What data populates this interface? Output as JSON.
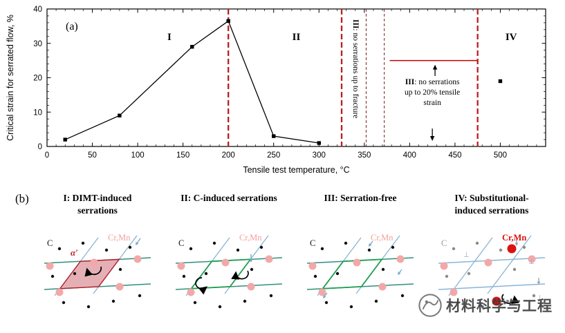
{
  "figure": {
    "panel_a_label": "(a)",
    "panel_b_label": "(b)"
  },
  "chart_data": {
    "type": "line",
    "xlabel": "Tensile test temperature, °C",
    "ylabel": "Critical strain for serrated flow, %",
    "xlim": [
      0,
      550
    ],
    "ylim": [
      0,
      40
    ],
    "xticks": [
      0,
      50,
      100,
      150,
      200,
      250,
      300,
      350,
      400,
      450,
      500
    ],
    "yticks": [
      0,
      10,
      20,
      30,
      40
    ],
    "series": [
      {
        "name": "Critical strain for serrated flow",
        "marker": "square",
        "color": "#000000",
        "points": [
          [
            20,
            2
          ],
          [
            80,
            9
          ],
          [
            160,
            29
          ],
          [
            200,
            36.5
          ],
          [
            250,
            3
          ],
          [
            300,
            1
          ]
        ]
      }
    ],
    "isolated_points": [
      [
        500,
        19
      ]
    ],
    "region_labels": [
      {
        "text": "I",
        "x": 135,
        "y": 31
      },
      {
        "text": "II",
        "x": 275,
        "y": 31
      },
      {
        "text": "IV",
        "x": 512,
        "y": 31
      }
    ],
    "boundaries_bold": [
      200,
      325,
      475
    ],
    "boundaries_thin": [
      352,
      372
    ],
    "boundary_bold_color": "#bb1e1e",
    "boundary_thin_color": "#7d1a1a",
    "annotation_vertical": {
      "bold": "III",
      "text": ": no serrations up to fracture",
      "x": 338
    },
    "annotation_box": {
      "bold": "III",
      "lines": [
        ": no serrations",
        "up to 20% tensile",
        "strain"
      ],
      "x": 425,
      "line_y": 25,
      "line_x1": 378,
      "line_x2": 475,
      "line_color": "#c00000"
    },
    "arrows": [
      {
        "x": 428,
        "y_from": 20.5,
        "y_to": 23.8
      },
      {
        "x": 425,
        "y_from": 5.2,
        "y_to": 1.6
      }
    ]
  },
  "panels": [
    {
      "numeral": "I",
      "title_line1": "I: DIMT-induced",
      "title_line2": "serrations",
      "c_label": "C",
      "crmn_label": "Cr,Mn",
      "c_color": "#111111",
      "crmn_color": "#f2a0a0",
      "crmn_bold": false,
      "dot_color": "#111111",
      "pink_color": "#f2a8a8",
      "h_line_color": "#2f8f7c",
      "d_line_color": "#8ab4d6",
      "feature": "dimt",
      "alpha_label": "α′",
      "alpha_color": "#c0202a",
      "martensite_fill": "#e2a7ad",
      "martensite_stroke": "#b01e28"
    },
    {
      "numeral": "II",
      "title_line1": "II: C-induced serrations",
      "title_line2": "",
      "c_label": "C",
      "crmn_label": "Cr,Mn",
      "c_color": "#111111",
      "crmn_color": "#f2a0a0",
      "crmn_bold": false,
      "dot_color": "#111111",
      "pink_color": "#f2a8a8",
      "h_line_color": "#2f8f7c",
      "d_line_color": "#8ab4d6",
      "feature": "c_pinning",
      "slip_outline_color": "#1f9e4f"
    },
    {
      "numeral": "III",
      "title_line1": "III: Serration-free",
      "title_line2": "",
      "c_label": "C",
      "crmn_label": "Cr,Mn",
      "c_color": "#111111",
      "crmn_color": "#f2a0a0",
      "crmn_bold": false,
      "dot_color": "#111111",
      "pink_color": "#f2a8a8",
      "h_line_color": "#2f8f7c",
      "d_line_color": "#8ab4d6",
      "feature": "free",
      "slip_outline_color": "#1f9e4f"
    },
    {
      "numeral": "IV",
      "title_line1": "IV: Substitutional-",
      "title_line2": "induced serrations",
      "c_label": "C",
      "crmn_label": "Cr,Mn",
      "c_color": "#9a9a9a",
      "crmn_color": "#dd1111",
      "crmn_bold": true,
      "dot_color": "#8a8a8a",
      "pink_color": "#f2a8a8",
      "h_line_color": "#8ab4d6",
      "d_line_color": "#8ab4d6",
      "feature": "sub_pinning",
      "red_color": "#dd1111"
    }
  ],
  "watermark": {
    "text": "材料科学与工程"
  }
}
